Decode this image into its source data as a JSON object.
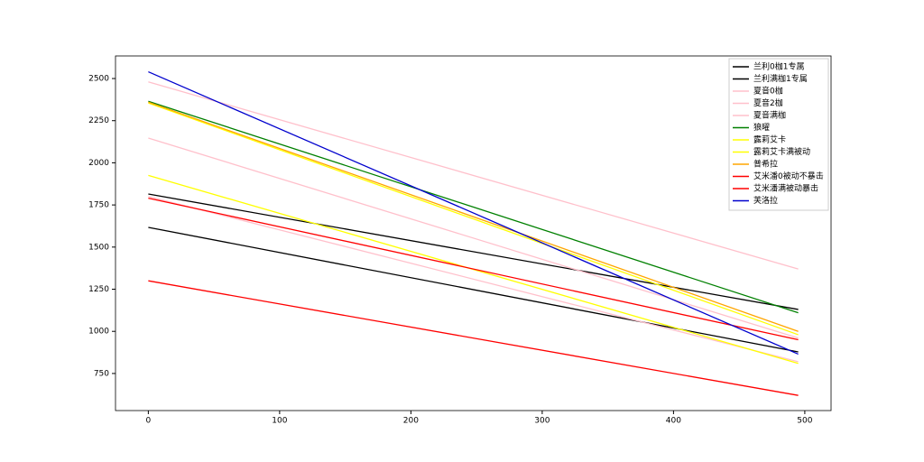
{
  "chart_data": {
    "type": "line",
    "x": [
      0,
      495
    ],
    "series": [
      {
        "name": "兰利0枷1专属",
        "color": "#000000",
        "values": [
          1617,
          878
        ]
      },
      {
        "name": "兰利满枷1专属",
        "color": "#000000",
        "values": [
          1815,
          1130
        ]
      },
      {
        "name": "夏音0枷",
        "color": "#ffc0cb",
        "values": [
          1800,
          820
        ]
      },
      {
        "name": "夏音2枷",
        "color": "#ffc0cb",
        "values": [
          2147,
          960
        ]
      },
      {
        "name": "夏音满枷",
        "color": "#ffc0cb",
        "values": [
          2480,
          1370
        ]
      },
      {
        "name": "狼曜",
        "color": "#008000",
        "values": [
          2365,
          1110
        ]
      },
      {
        "name": "露莉艾卡",
        "color": "#ffff00",
        "values": [
          1925,
          810
        ]
      },
      {
        "name": "露莉艾卡满被动",
        "color": "#ffff00",
        "values": [
          2355,
          980
        ]
      },
      {
        "name": "普希拉",
        "color": "#ffa500",
        "values": [
          2360,
          1000
        ]
      },
      {
        "name": "艾米潘0被动不暴击",
        "color": "#ff0000",
        "values": [
          1300,
          620
        ]
      },
      {
        "name": "艾米潘满被动暴击",
        "color": "#ff0000",
        "values": [
          1790,
          950
        ]
      },
      {
        "name": "芙洛拉",
        "color": "#0000cd",
        "values": [
          2540,
          865
        ]
      }
    ],
    "xlim": [
      -25,
      520
    ],
    "xticks": [
      0,
      100,
      200,
      300,
      400,
      500
    ],
    "ylim": [
      530,
      2634
    ],
    "yticks": [
      750,
      1000,
      1250,
      1500,
      1750,
      2000,
      2250,
      2500
    ],
    "legend": "upper right"
  }
}
